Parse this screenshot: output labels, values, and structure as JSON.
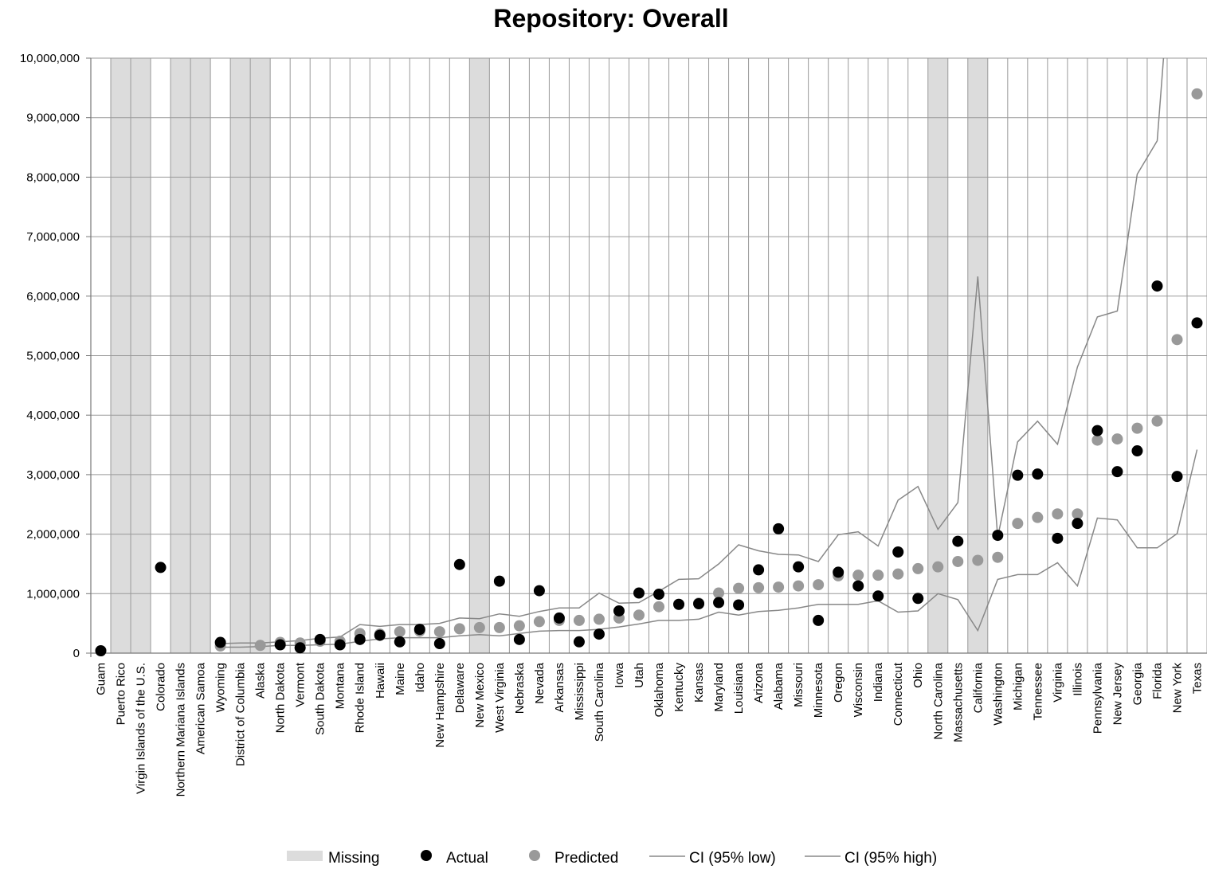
{
  "chart_data": {
    "type": "scatter",
    "title": "Repository: Overall",
    "xlabel": "",
    "ylabel": "",
    "ylim": [
      0,
      10000000
    ],
    "yticks": [
      0,
      1000000,
      2000000,
      3000000,
      4000000,
      5000000,
      6000000,
      7000000,
      8000000,
      9000000,
      10000000
    ],
    "ytick_labels": [
      "0",
      "1,000,000",
      "2,000,000",
      "3,000,000",
      "4,000,000",
      "5,000,000",
      "6,000,000",
      "7,000,000",
      "8,000,000",
      "9,000,000",
      "10,000,000"
    ],
    "grid": true,
    "legend_position": "bottom",
    "categories": [
      "Guam",
      "Puerto Rico",
      "Virgin Islands of the U.S.",
      "Colorado",
      "Northern Mariana Islands",
      "American Samoa",
      "Wyoming",
      "District of Columbia",
      "Alaska",
      "North Dakota",
      "Vermont",
      "South Dakota",
      "Montana",
      "Rhode Island",
      "Hawaii",
      "Maine",
      "Idaho",
      "New Hampshire",
      "Delaware",
      "New Mexico",
      "West Virginia",
      "Nebraska",
      "Nevada",
      "Arkansas",
      "Mississippi",
      "South Carolina",
      "Iowa",
      "Utah",
      "Oklahoma",
      "Kentucky",
      "Kansas",
      "Maryland",
      "Louisiana",
      "Arizona",
      "Alabama",
      "Missouri",
      "Minnesota",
      "Oregon",
      "Wisconsin",
      "Indiana",
      "Connecticut",
      "Ohio",
      "North Carolina",
      "Massachusetts",
      "California",
      "Washington",
      "Michigan",
      "Tennessee",
      "Virginia",
      "Illinois",
      "Pennsylvania",
      "New Jersey",
      "Georgia",
      "Florida",
      "New York",
      "Texas"
    ],
    "missing": [
      false,
      true,
      true,
      false,
      true,
      true,
      false,
      true,
      true,
      false,
      false,
      false,
      false,
      false,
      false,
      false,
      false,
      false,
      false,
      true,
      false,
      false,
      false,
      false,
      false,
      false,
      false,
      false,
      false,
      false,
      false,
      false,
      false,
      false,
      false,
      false,
      false,
      false,
      false,
      false,
      false,
      false,
      true,
      false,
      true,
      false,
      false,
      false,
      false,
      false,
      false,
      false,
      false,
      false,
      false,
      false
    ],
    "series": [
      {
        "name": "Actual",
        "type": "scatter",
        "color": "#000000",
        "values": [
          40000,
          null,
          null,
          1440000,
          null,
          null,
          180000,
          null,
          null,
          140000,
          90000,
          230000,
          140000,
          230000,
          300000,
          190000,
          400000,
          160000,
          1490000,
          null,
          1210000,
          230000,
          1050000,
          590000,
          190000,
          320000,
          710000,
          1010000,
          990000,
          820000,
          830000,
          850000,
          810000,
          1400000,
          2090000,
          1450000,
          550000,
          1360000,
          1130000,
          960000,
          1700000,
          920000,
          null,
          1880000,
          null,
          1980000,
          2990000,
          3010000,
          1930000,
          2180000,
          3740000,
          3050000,
          3400000,
          6170000,
          2970000,
          5550000
        ]
      },
      {
        "name": "Predicted",
        "type": "scatter",
        "color": "#999999",
        "values": [
          null,
          null,
          null,
          null,
          null,
          null,
          120000,
          null,
          130000,
          180000,
          170000,
          200000,
          200000,
          330000,
          320000,
          360000,
          370000,
          360000,
          410000,
          430000,
          430000,
          460000,
          530000,
          550000,
          550000,
          570000,
          590000,
          640000,
          780000,
          820000,
          840000,
          1010000,
          1090000,
          1100000,
          1110000,
          1130000,
          1150000,
          1300000,
          1310000,
          1310000,
          1330000,
          1420000,
          1450000,
          1540000,
          1560000,
          1610000,
          2180000,
          2280000,
          2340000,
          2340000,
          3580000,
          3600000,
          3780000,
          3900000,
          5270000,
          9400000
        ]
      },
      {
        "name": "CI (95% low)",
        "type": "line",
        "color": "#888888",
        "values": [
          null,
          null,
          null,
          null,
          null,
          null,
          100000,
          100000,
          110000,
          130000,
          130000,
          140000,
          150000,
          200000,
          240000,
          260000,
          260000,
          260000,
          290000,
          310000,
          290000,
          330000,
          370000,
          380000,
          380000,
          400000,
          440000,
          490000,
          550000,
          550000,
          570000,
          690000,
          640000,
          700000,
          720000,
          760000,
          820000,
          820000,
          820000,
          880000,
          690000,
          710000,
          1000000,
          900000,
          380000,
          1240000,
          1320000,
          1320000,
          1520000,
          1130000,
          2270000,
          2240000,
          1770000,
          1770000,
          2010000,
          3420000
        ]
      },
      {
        "name": "CI (95% high)",
        "type": "line",
        "color": "#888888",
        "values": [
          null,
          null,
          null,
          null,
          null,
          null,
          160000,
          170000,
          170000,
          190000,
          210000,
          250000,
          270000,
          480000,
          450000,
          480000,
          480000,
          500000,
          590000,
          580000,
          660000,
          620000,
          700000,
          760000,
          760000,
          1010000,
          840000,
          850000,
          1040000,
          1240000,
          1250000,
          1500000,
          1820000,
          1720000,
          1660000,
          1650000,
          1540000,
          1990000,
          2040000,
          1800000,
          2570000,
          2800000,
          2080000,
          2530000,
          6330000,
          1950000,
          3550000,
          3900000,
          3510000,
          4810000,
          5650000,
          5750000,
          8050000,
          8610000,
          13000000,
          null
        ]
      }
    ],
    "legend": [
      "Missing",
      "Actual",
      "Predicted",
      "CI (95% low)",
      "CI (95% high)"
    ],
    "colors": {
      "missing": "#dcdcdc",
      "actual": "#000000",
      "predicted": "#999999",
      "ci": "#888888",
      "grid": "#9a9a9a"
    }
  }
}
